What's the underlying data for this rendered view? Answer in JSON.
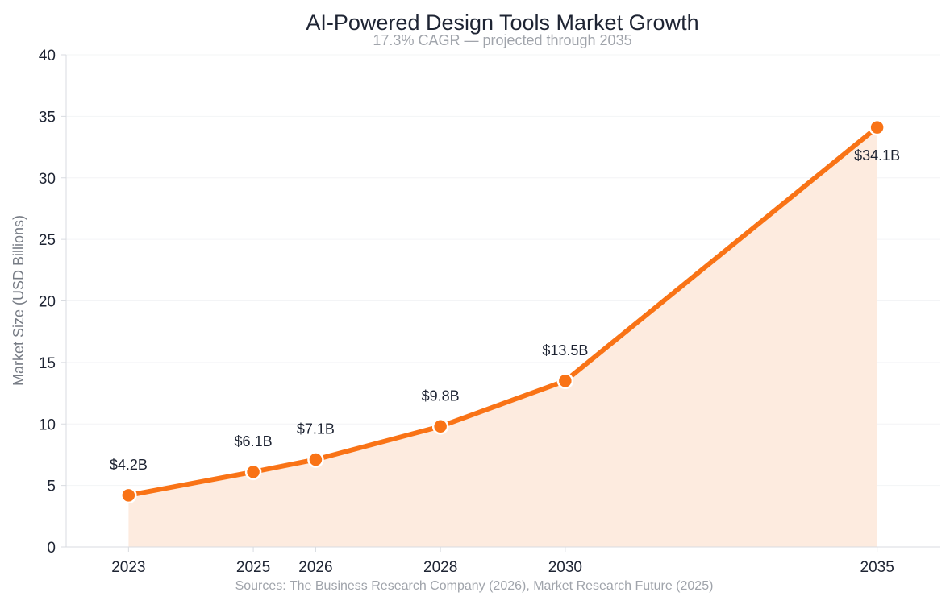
{
  "chart_data": {
    "type": "line",
    "title": "AI-Powered Design Tools Market Growth",
    "subtitle": "17.3% CAGR — projected through 2035",
    "ylabel": "Market Size (USD Billions)",
    "xlabel": "",
    "x": [
      2023,
      2025,
      2026,
      2028,
      2030,
      2035
    ],
    "values": [
      4.2,
      6.1,
      7.1,
      9.8,
      13.5,
      34.1
    ],
    "data_labels": [
      "$4.2B",
      "$6.1B",
      "$7.1B",
      "$9.8B",
      "$13.5B",
      "$34.1B"
    ],
    "xlim": [
      2022,
      2036
    ],
    "ylim": [
      0,
      40
    ],
    "yticks": [
      0,
      5,
      10,
      15,
      20,
      25,
      30,
      35,
      40
    ],
    "grid": true,
    "area_fill": true,
    "source": "Sources: The Business Research Company (2026), Market Research Future (2025)",
    "colors": {
      "line": "#f97316",
      "area": "#fdebdf",
      "grid": "#f3f4f6",
      "axis": "#d8dbe0"
    }
  }
}
